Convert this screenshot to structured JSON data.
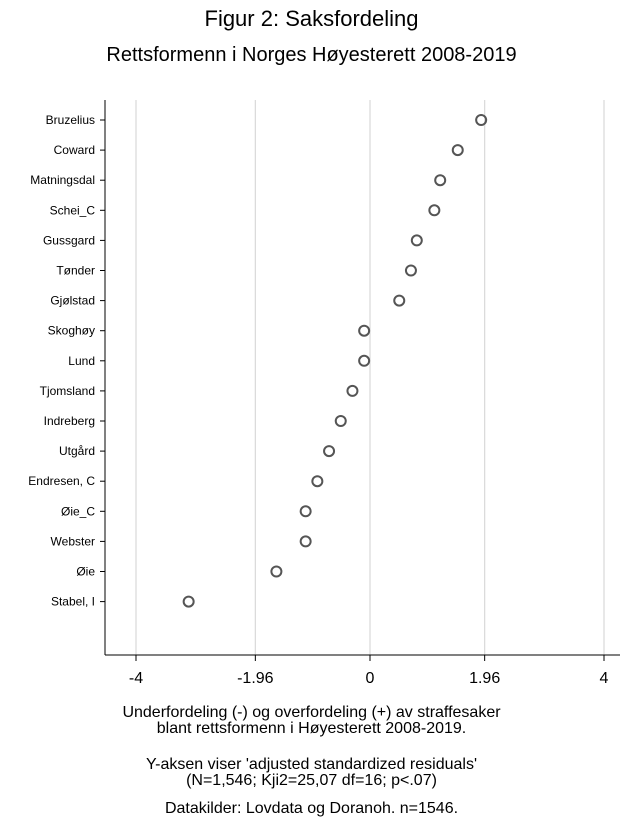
{
  "chart_data": {
    "type": "scatter",
    "title": "Figur 2: Saksfordeling",
    "subtitle": "Rettsformenn i Norges Høyesterett 2008-2019",
    "categories": [
      "Bruzelius",
      "Coward",
      "Matningsdal",
      "Schei_C",
      "Gussgard",
      "Tønder",
      "Gjølstad",
      "Skoghøy",
      "Lund",
      "Tjomsland",
      "Indreberg",
      "Utgård",
      "Endresen, C",
      "Øie_C",
      "Webster",
      "Øie",
      "Stabel, I"
    ],
    "values": [
      1.9,
      1.5,
      1.2,
      1.1,
      0.8,
      0.7,
      0.5,
      -0.1,
      -0.1,
      -0.3,
      -0.5,
      -0.7,
      -0.9,
      -1.1,
      -1.1,
      -1.6,
      -3.1
    ],
    "x_ticks": [
      "-4",
      "-1.96",
      "0",
      "1.96",
      "4"
    ],
    "x_tick_values": [
      -4,
      -1.96,
      0,
      1.96,
      4
    ],
    "xlim": [
      -4.5,
      4.3
    ],
    "grid": "vertical",
    "xlabel": "",
    "ylabel": ""
  },
  "notes": {
    "line1": "Underfordeling (-) og overfordeling (+) av straffesaker",
    "line2": "blant rettsformenn i Høyesterett 2008-2019.",
    "line3": "Y-aksen viser 'adjusted standardized residuals'",
    "line4": "(N=1,546; Kji2=25,07 df=16; p<.07)",
    "line5": "Datakilder: Lovdata og Doranoh. n=1546."
  }
}
